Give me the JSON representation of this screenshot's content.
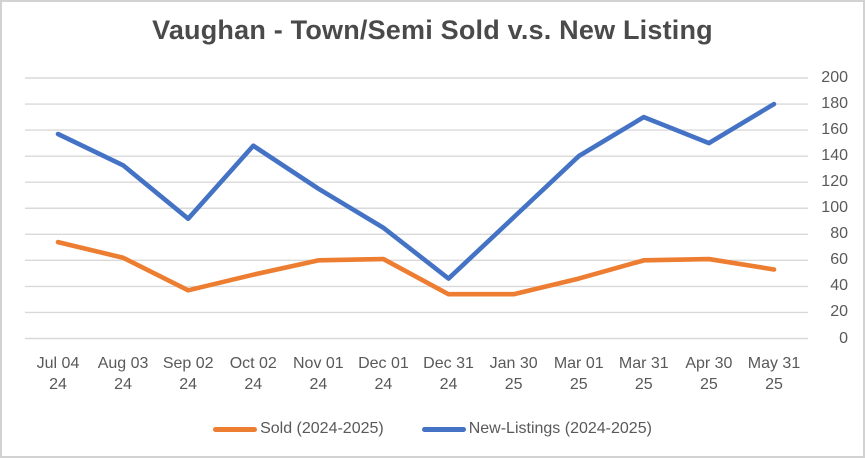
{
  "chart_data": {
    "type": "line",
    "title": "Vaughan - Town/Semi Sold v.s. New Listing",
    "categories": [
      {
        "label": "Jul 04",
        "year": "24"
      },
      {
        "label": "Aug 03",
        "year": "24"
      },
      {
        "label": "Sep 02",
        "year": "24"
      },
      {
        "label": "Oct 02",
        "year": "24"
      },
      {
        "label": "Nov 01",
        "year": "24"
      },
      {
        "label": "Dec 01",
        "year": "24"
      },
      {
        "label": "Dec 31",
        "year": "24"
      },
      {
        "label": "Jan 30",
        "year": "25"
      },
      {
        "label": "Mar 01",
        "year": "25"
      },
      {
        "label": "Mar 31",
        "year": "25"
      },
      {
        "label": "Apr 30",
        "year": "25"
      },
      {
        "label": "May 31",
        "year": "25"
      }
    ],
    "series": [
      {
        "id": "sold",
        "name": "Sold (2024-2025)",
        "color": "#ED7D31",
        "values": [
          74,
          62,
          37,
          49,
          60,
          61,
          34,
          34,
          46,
          60,
          61,
          53
        ]
      },
      {
        "id": "new-listings",
        "name": "New-Listings (2024-2025)",
        "color": "#4472C4",
        "values": [
          157,
          133,
          92,
          148,
          115,
          85,
          46,
          93,
          140,
          170,
          150,
          180
        ]
      }
    ],
    "y_axis": {
      "min": 0,
      "max": 200,
      "step": 20,
      "side": "right",
      "ticks": [
        0,
        20,
        40,
        60,
        80,
        100,
        120,
        140,
        160,
        180,
        200
      ]
    },
    "grid": true,
    "gridline_color": "#D9D9D9",
    "legend_position": "bottom",
    "text_color": "#595959",
    "title_color": "#4A4A4A",
    "frame_border_color": "#D2D2D2"
  }
}
